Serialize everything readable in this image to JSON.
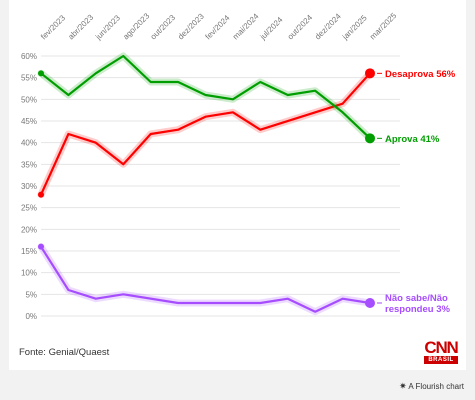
{
  "chart_data": {
    "type": "line",
    "x": [
      "fev/2023",
      "abr/2023",
      "jun/2023",
      "ago/2023",
      "out/2023",
      "dez/2023",
      "fev/2024",
      "mai/2024",
      "jul/2024",
      "out/2024",
      "dez/2024",
      "jan/2025",
      "mar/2025"
    ],
    "x_labels": [
      "fev/2023",
      "abr/2023",
      "jun/2023",
      "ago/2023",
      "out/2023",
      "dez/2023",
      "fev/2024",
      "mai/2024",
      "jul/2024",
      "out/2024",
      "dez/2024",
      "jan/2025",
      "mar/2025"
    ],
    "y_ticks": [
      "60%",
      "55%",
      "50%",
      "45%",
      "40%",
      "35%",
      "30%",
      "25%",
      "20%",
      "15%",
      "10%",
      "5%",
      "0%"
    ],
    "ylim": [
      0,
      60
    ],
    "grid": true,
    "series": [
      {
        "name": "Desaprova",
        "label_lines": [
          "Desaprova 56%"
        ],
        "color": "#ff0000",
        "values": [
          28,
          42,
          40,
          35,
          42,
          43,
          46,
          47,
          43,
          null,
          null,
          49,
          56
        ]
      },
      {
        "name": "Aprova",
        "label_lines": [
          "Aprova 41%"
        ],
        "color": "#009e00",
        "values": [
          56,
          51,
          56,
          60,
          54,
          54,
          51,
          50,
          54,
          51,
          52,
          47,
          41
        ]
      },
      {
        "name": "Não sabe/Não respondeu",
        "label_lines": [
          "Não sabe/Não",
          "respondeu 3%"
        ],
        "color": "#a64dff",
        "values": [
          16,
          6,
          4,
          5,
          null,
          3,
          null,
          3,
          3,
          4,
          1,
          4,
          3
        ]
      }
    ]
  },
  "footer": {
    "source": "Fonte: Genial/Quaest",
    "logo_text": "CNN",
    "logo_sub": "BRASIL",
    "flourish_star": "✷",
    "flourish_credit": "A Flourish chart"
  }
}
